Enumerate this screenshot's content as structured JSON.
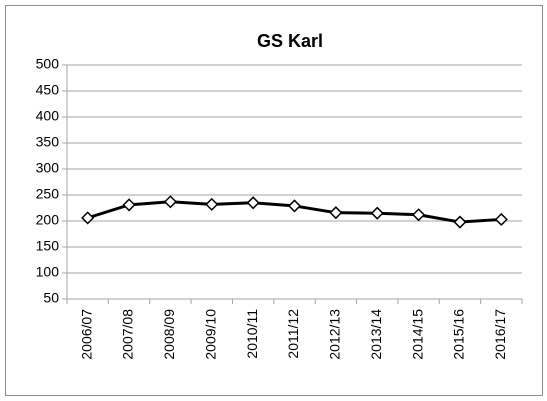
{
  "chart_data": {
    "type": "line",
    "title": "GS Karl",
    "categories": [
      "2006/07",
      "2007/08",
      "2008/09",
      "2009/10",
      "2010/11",
      "2011/12",
      "2012/13",
      "2013/14",
      "2014/15",
      "2015/16",
      "2016/17"
    ],
    "series": [
      {
        "name": "GS Karl",
        "color": "#000000",
        "values": [
          206,
          231,
          237,
          232,
          235,
          229,
          216,
          215,
          212,
          198,
          203
        ]
      }
    ],
    "ylim": [
      50,
      500
    ],
    "yticks": [
      50,
      100,
      150,
      200,
      250,
      300,
      350,
      400,
      450,
      500
    ],
    "grid": true,
    "legend": false
  }
}
